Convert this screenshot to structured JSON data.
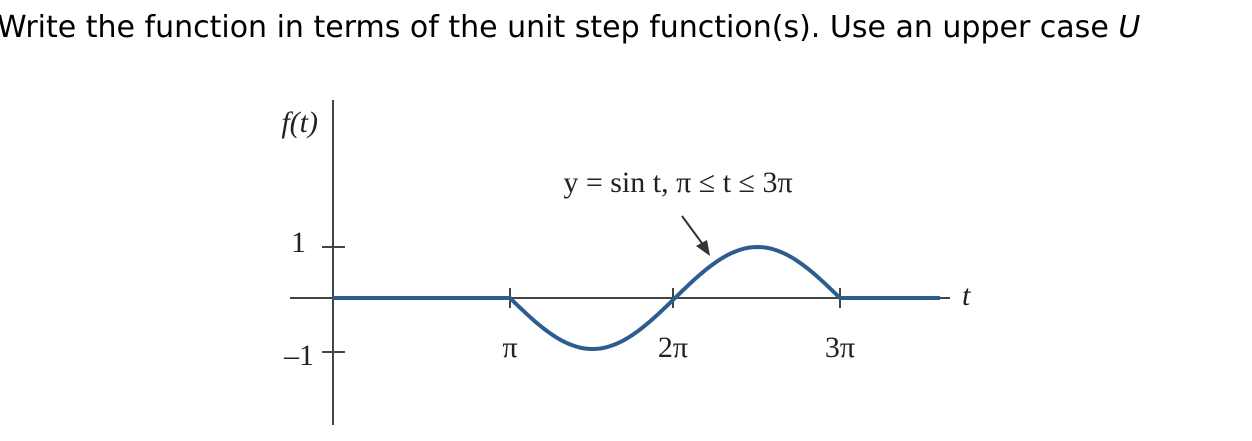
{
  "question": {
    "text": "Write the function in terms of the unit step function(s). Use an upper case",
    "variable": "U"
  },
  "figure": {
    "y_axis_label": "f(t)",
    "x_axis_label": "t",
    "y_tick_labels": [
      "1",
      "–1"
    ],
    "x_tick_labels": [
      "π",
      "2π",
      "3π"
    ],
    "annotation": "y = sin t, π ≤ t ≤ 3π"
  }
}
